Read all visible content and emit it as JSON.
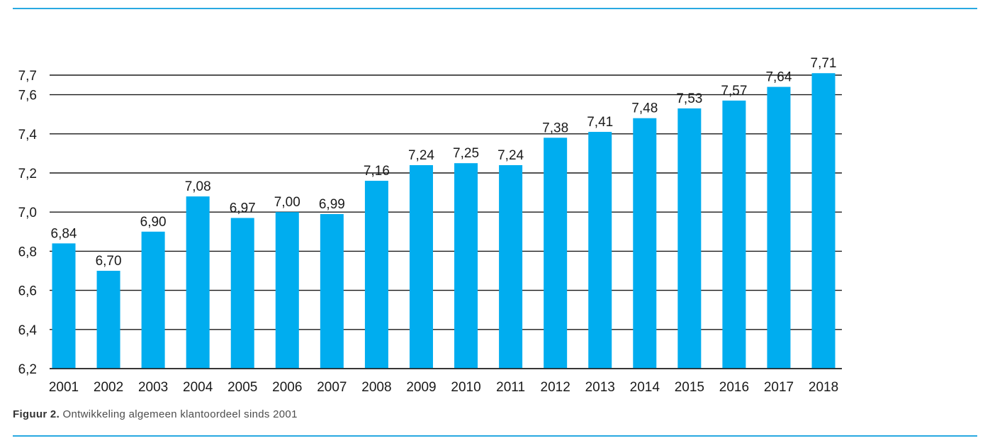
{
  "colors": {
    "bar": "#00adef",
    "grid": "#1a1a1a",
    "rule": "#29a9e1"
  },
  "caption": {
    "lead": "Figuur 2.",
    "text": "Ontwikkeling algemeen klantoordeel sinds 2001"
  },
  "chart_data": {
    "type": "bar",
    "categories": [
      "2001",
      "2002",
      "2003",
      "2004",
      "2005",
      "2006",
      "2007",
      "2008",
      "2009",
      "2010",
      "2011",
      "2012",
      "2013",
      "2014",
      "2015",
      "2016",
      "2017",
      "2018"
    ],
    "values": [
      6.84,
      6.7,
      6.9,
      7.08,
      6.97,
      7.0,
      6.99,
      7.16,
      7.24,
      7.25,
      7.24,
      7.38,
      7.41,
      7.48,
      7.53,
      7.57,
      7.64,
      7.71
    ],
    "value_labels": [
      "6,84",
      "6,70",
      "6,90",
      "7,08",
      "6,97",
      "7,00",
      "6,99",
      "7,16",
      "7,24",
      "7,25",
      "7,24",
      "7,38",
      "7,41",
      "7,48",
      "7,53",
      "7,57",
      "7,64",
      "7,71"
    ],
    "yticks": [
      6.2,
      6.4,
      6.6,
      6.8,
      7.0,
      7.2,
      7.4,
      7.6,
      7.7
    ],
    "ytick_labels": [
      "6,2",
      "6,4",
      "6,6",
      "6,8",
      "7,0",
      "7,2",
      "7,4",
      "7,6",
      "7,7"
    ],
    "ylim": [
      6.2,
      7.75
    ],
    "title": "",
    "xlabel": "",
    "ylabel": "",
    "grid": true,
    "legend": "none"
  }
}
